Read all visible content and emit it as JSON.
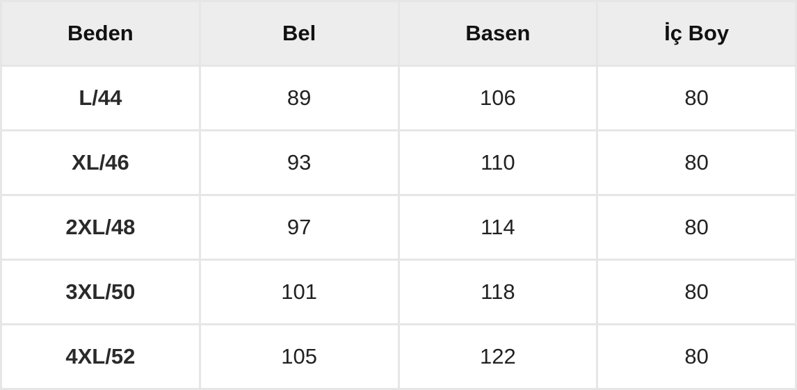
{
  "table": {
    "headers": [
      "Beden",
      "Bel",
      "Basen",
      "İç Boy"
    ],
    "rows": [
      [
        "L/44",
        "89",
        "106",
        "80"
      ],
      [
        "XL/46",
        "93",
        "110",
        "80"
      ],
      [
        "2XL/48",
        "97",
        "114",
        "80"
      ],
      [
        "3XL/50",
        "101",
        "118",
        "80"
      ],
      [
        "4XL/52",
        "105",
        "122",
        "80"
      ]
    ]
  }
}
